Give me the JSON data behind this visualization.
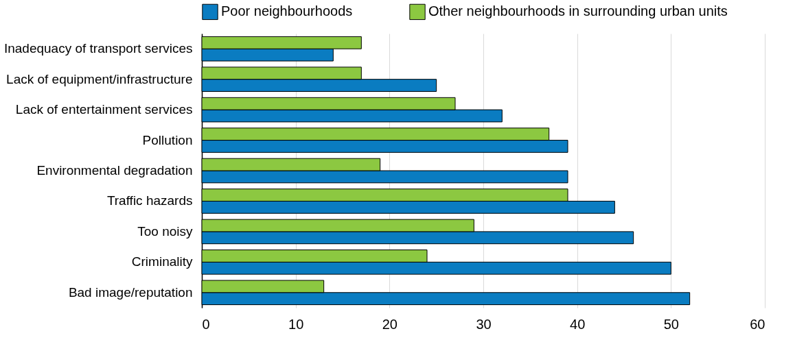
{
  "chart_data": {
    "type": "bar",
    "orientation": "horizontal",
    "categories": [
      "Inadequacy of transport services",
      "Lack of equipment/infrastructure",
      "Lack of entertainment services",
      "Pollution",
      "Environmental degradation",
      "Traffic hazards",
      "Too noisy",
      "Criminality",
      "Bad image/reputation"
    ],
    "series": [
      {
        "name": "Poor neighbourhoods",
        "color": "#0a7cc1",
        "values": [
          14,
          25,
          32,
          39,
          39,
          44,
          46,
          50,
          52
        ]
      },
      {
        "name": "Other neighbourhoods in surrounding urban units",
        "color": "#8cc841",
        "values": [
          17,
          17,
          27,
          37,
          19,
          39,
          29,
          24,
          13
        ]
      }
    ],
    "xlim": [
      0,
      60
    ],
    "xticks": [
      0,
      10,
      20,
      30,
      40,
      50,
      60
    ],
    "grid": "x",
    "legend": "top"
  }
}
